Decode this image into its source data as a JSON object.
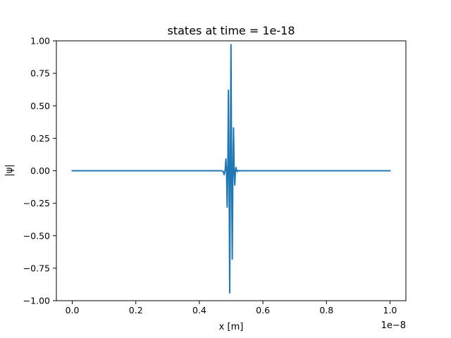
{
  "chart_data": {
    "type": "line",
    "title": "states at time = 1e-18",
    "xlabel": "x [m]",
    "ylabel": "|ψ|",
    "x_offset_text": "1e−8",
    "xlim": [
      -0.05,
      1.05
    ],
    "ylim": [
      -1.0,
      1.0
    ],
    "xticks": [
      0.0,
      0.2,
      0.4,
      0.6,
      0.8,
      1.0
    ],
    "xtick_labels": [
      "0.0",
      "0.2",
      "0.4",
      "0.6",
      "0.8",
      "1.0"
    ],
    "yticks": [
      -1.0,
      -0.75,
      -0.5,
      -0.25,
      0.0,
      0.25,
      0.5,
      0.75,
      1.0
    ],
    "ytick_labels": [
      "−1.00",
      "−0.75",
      "−0.50",
      "−0.25",
      "0.00",
      "0.25",
      "0.50",
      "0.75",
      "1.00"
    ],
    "grid": false,
    "series": [
      {
        "color": "#1f77b4",
        "x": [
          0.0,
          0.47,
          0.475,
          0.478,
          0.481,
          0.4835,
          0.4855,
          0.4875,
          0.4895,
          0.4915,
          0.4935,
          0.4955,
          0.4975,
          0.4995,
          0.5015,
          0.5035,
          0.5055,
          0.5075,
          0.5095,
          0.5115,
          0.5135,
          0.5155,
          0.5175,
          0.5195,
          0.5215,
          0.5235,
          0.526,
          0.53,
          1.0
        ],
        "y": [
          0.0,
          0.0,
          -0.005,
          -0.03,
          0.0,
          0.09,
          0.0,
          -0.28,
          0.0,
          0.62,
          0.0,
          -0.94,
          0.0,
          0.97,
          0.0,
          -0.68,
          0.0,
          0.33,
          0.0,
          -0.11,
          0.0,
          0.025,
          0.0,
          -0.006,
          0.0,
          0.002,
          0.0,
          0.0,
          0.0
        ]
      }
    ]
  }
}
